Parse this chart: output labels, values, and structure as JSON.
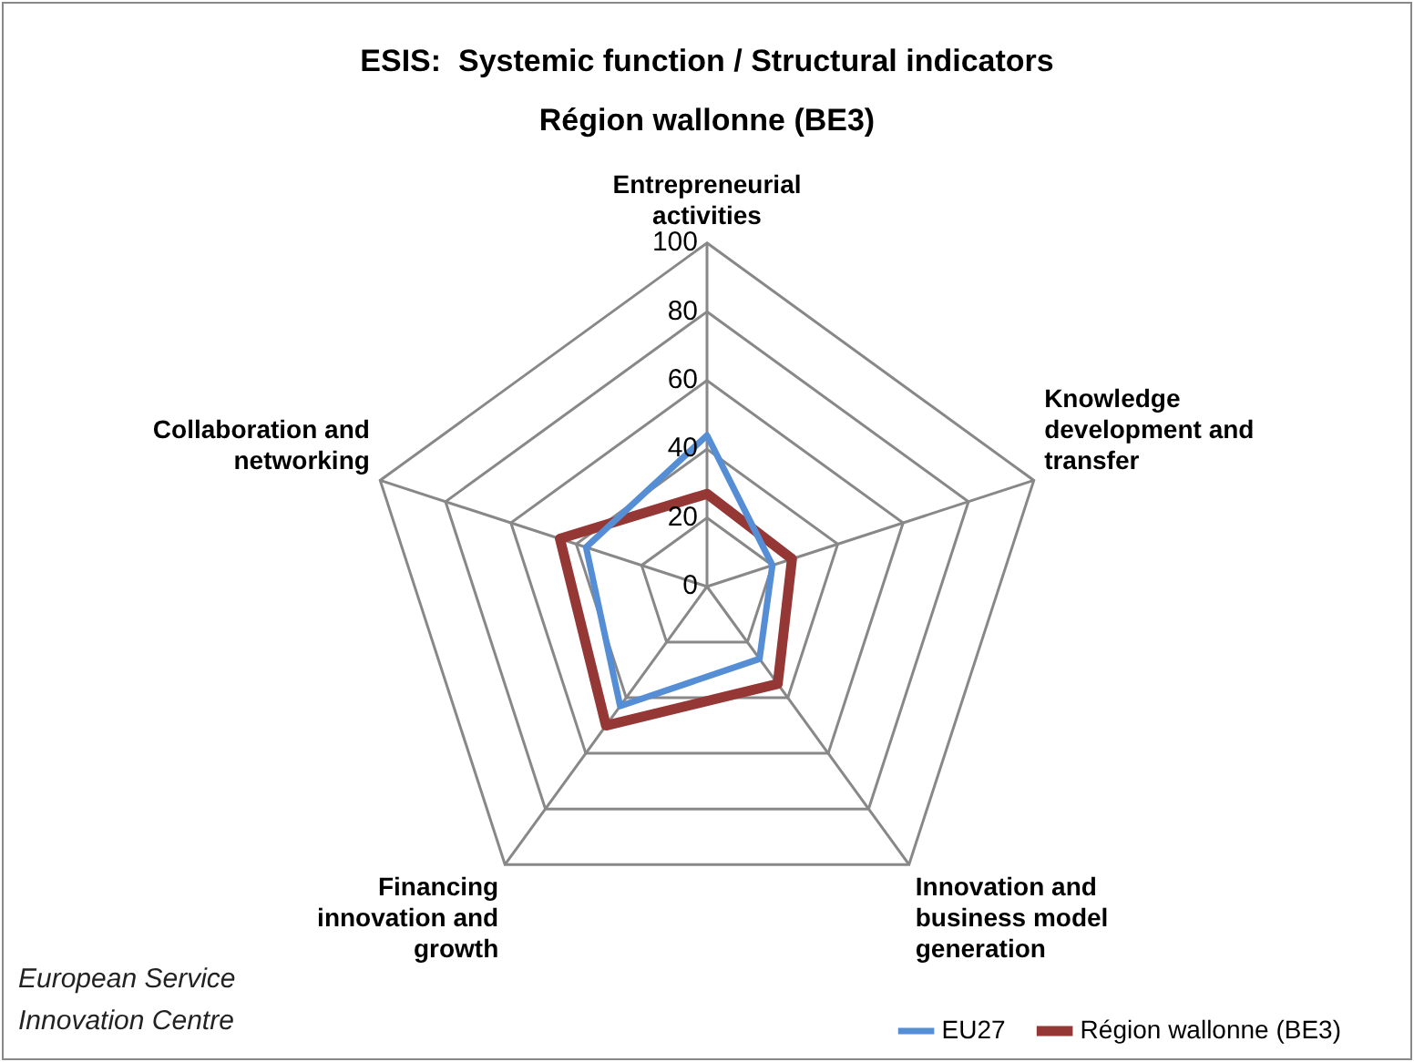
{
  "chart_data": {
    "type": "radar",
    "title": "ESIS:  Systemic function / Structural indicators",
    "subtitle": "Région wallonne (BE3)",
    "categories": [
      "Entrepreneurial activities",
      "Knowledge development and transfer",
      "Innovation and business model generation",
      "Financing innovation and growth",
      "Collaboration and networking"
    ],
    "series": [
      {
        "name": "EU27",
        "color": "#558ed5",
        "values": [
          44,
          20,
          26,
          43,
          37
        ]
      },
      {
        "name": "Région wallonne (BE3)",
        "color": "#953735",
        "values": [
          27,
          26,
          35,
          50,
          45
        ]
      }
    ],
    "ylim": [
      0,
      100
    ],
    "yticks": [
      0,
      20,
      40,
      60,
      80,
      100
    ],
    "grid": true,
    "legend": "bottom",
    "marker": "none",
    "line_style": "solid",
    "annotations": [
      "European Service Innovation Centre"
    ]
  }
}
